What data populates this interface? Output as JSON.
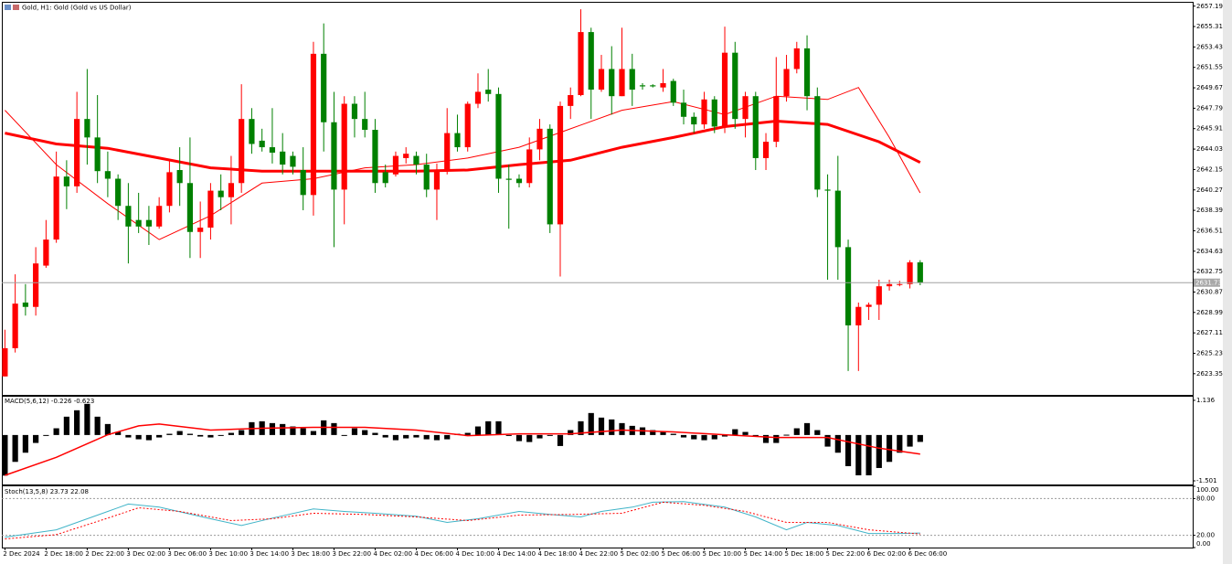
{
  "chart_data": [
    {
      "type": "candlestick",
      "title": "Gold, H1:  Gold (Gold vs US Dollar)",
      "up_color": "#ff0000",
      "down_color": "#008000",
      "xlim": [
        -0.3,
        115.5
      ],
      "ylim": [
        2621.4,
        2657.5
      ],
      "yticks": [
        2657.19,
        2655.31,
        2653.43,
        2651.55,
        2649.67,
        2647.79,
        2645.91,
        2644.03,
        2642.15,
        2640.27,
        2638.39,
        2636.51,
        2634.63,
        2632.75,
        2630.87,
        2628.99,
        2627.11,
        2625.23,
        2623.35
      ],
      "xticks": [
        {
          "value": 0,
          "label": "2 Dec 2024"
        },
        {
          "value": 4,
          "label": "2 Dec 18:00"
        },
        {
          "value": 8,
          "label": "2 Dec 22:00"
        },
        {
          "value": 12,
          "label": "3 Dec 02:00"
        },
        {
          "value": 16,
          "label": "3 Dec 06:00"
        },
        {
          "value": 20,
          "label": "3 Dec 10:00"
        },
        {
          "value": 24,
          "label": "3 Dec 14:00"
        },
        {
          "value": 28,
          "label": "3 Dec 18:00"
        },
        {
          "value": 32,
          "label": "3 Dec 22:00"
        },
        {
          "value": 36,
          "label": "4 Dec 02:00"
        },
        {
          "value": 40,
          "label": "4 Dec 06:00"
        },
        {
          "value": 44,
          "label": "4 Dec 10:00"
        },
        {
          "value": 48,
          "label": "4 Dec 14:00"
        },
        {
          "value": 52,
          "label": "4 Dec 18:00"
        },
        {
          "value": 56,
          "label": "4 Dec 22:00"
        },
        {
          "value": 60,
          "label": "5 Dec 02:00"
        },
        {
          "value": 64,
          "label": "5 Dec 06:00"
        },
        {
          "value": 68,
          "label": "5 Dec 10:00"
        },
        {
          "value": 72,
          "label": "5 Dec 14:00"
        },
        {
          "value": 76,
          "label": "5 Dec 18:00"
        },
        {
          "value": 80,
          "label": "5 Dec 22:00"
        },
        {
          "value": 84,
          "label": "6 Dec 02:00"
        },
        {
          "value": 88,
          "label": "6 Dec 06:00"
        }
      ],
      "ohlc": [
        [
          2623.1,
          2627.4,
          2623.1,
          2625.7
        ],
        [
          2625.7,
          2632.5,
          2625.3,
          2629.8
        ],
        [
          2629.9,
          2631.6,
          2628.7,
          2629.5
        ],
        [
          2629.5,
          2635.0,
          2628.7,
          2633.5
        ],
        [
          2633.3,
          2637.5,
          2633.1,
          2635.7
        ],
        [
          2635.7,
          2643.8,
          2635.4,
          2641.5
        ],
        [
          2641.5,
          2643.0,
          2638.5,
          2640.6
        ],
        [
          2640.6,
          2649.3,
          2640.0,
          2646.8
        ],
        [
          2646.8,
          2651.4,
          2642.6,
          2645.1
        ],
        [
          2645.1,
          2649.0,
          2640.9,
          2642.0
        ],
        [
          2642.0,
          2643.8,
          2639.6,
          2641.3
        ],
        [
          2641.3,
          2641.7,
          2637.5,
          2638.8
        ],
        [
          2638.8,
          2640.9,
          2633.5,
          2636.9
        ],
        [
          2637.5,
          2640.0,
          2636.3,
          2636.9
        ],
        [
          2637.5,
          2638.8,
          2635.2,
          2636.9
        ],
        [
          2636.9,
          2639.6,
          2636.7,
          2638.8
        ],
        [
          2638.8,
          2643.0,
          2638.2,
          2641.9
        ],
        [
          2642.1,
          2644.2,
          2638.8,
          2640.9
        ],
        [
          2640.9,
          2645.1,
          2634.0,
          2636.4
        ],
        [
          2636.4,
          2639.2,
          2634.0,
          2636.8
        ],
        [
          2636.8,
          2640.9,
          2635.7,
          2640.2
        ],
        [
          2640.2,
          2641.7,
          2638.4,
          2639.6
        ],
        [
          2639.6,
          2643.4,
          2637.1,
          2640.9
        ],
        [
          2640.9,
          2650.0,
          2640.0,
          2646.8
        ],
        [
          2646.8,
          2647.8,
          2643.6,
          2644.5
        ],
        [
          2644.8,
          2645.9,
          2643.8,
          2644.2
        ],
        [
          2644.2,
          2647.8,
          2642.7,
          2643.7
        ],
        [
          2643.8,
          2645.5,
          2641.7,
          2642.6
        ],
        [
          2643.4,
          2643.8,
          2641.7,
          2642.4
        ],
        [
          2642.1,
          2644.2,
          2638.4,
          2639.8
        ],
        [
          2639.8,
          2653.9,
          2637.9,
          2652.8
        ],
        [
          2652.8,
          2655.6,
          2643.8,
          2646.5
        ],
        [
          2646.5,
          2649.3,
          2635.0,
          2640.3
        ],
        [
          2640.3,
          2648.9,
          2637.1,
          2648.2
        ],
        [
          2648.2,
          2648.9,
          2645.1,
          2646.8
        ],
        [
          2646.8,
          2649.3,
          2645.1,
          2645.8
        ],
        [
          2645.8,
          2646.8,
          2640.0,
          2640.9
        ],
        [
          2641.9,
          2642.6,
          2640.5,
          2640.9
        ],
        [
          2641.7,
          2643.8,
          2641.5,
          2643.4
        ],
        [
          2643.2,
          2644.2,
          2642.7,
          2643.6
        ],
        [
          2643.4,
          2643.8,
          2641.7,
          2642.6
        ],
        [
          2642.6,
          2643.6,
          2639.6,
          2640.3
        ],
        [
          2640.3,
          2642.7,
          2637.5,
          2642.0
        ],
        [
          2642.0,
          2647.8,
          2641.7,
          2645.5
        ],
        [
          2645.5,
          2647.2,
          2643.8,
          2644.2
        ],
        [
          2644.2,
          2648.4,
          2643.8,
          2648.2
        ],
        [
          2648.2,
          2651.0,
          2647.8,
          2649.3
        ],
        [
          2649.5,
          2651.4,
          2648.4,
          2649.1
        ],
        [
          2649.1,
          2649.7,
          2640.0,
          2641.3
        ],
        [
          2641.3,
          2642.6,
          2636.7,
          2641.2
        ],
        [
          2641.3,
          2641.7,
          2640.5,
          2640.9
        ],
        [
          2640.9,
          2645.1,
          2640.5,
          2644.0
        ],
        [
          2644.0,
          2646.8,
          2643.0,
          2645.9
        ],
        [
          2645.9,
          2646.3,
          2636.3,
          2637.1
        ],
        [
          2637.1,
          2648.4,
          2632.3,
          2648.0
        ],
        [
          2648.0,
          2649.7,
          2646.8,
          2649.0
        ],
        [
          2649.0,
          2656.9,
          2648.9,
          2654.8
        ],
        [
          2654.8,
          2655.2,
          2646.8,
          2649.5
        ],
        [
          2649.5,
          2652.7,
          2649.3,
          2651.4
        ],
        [
          2651.4,
          2653.5,
          2647.2,
          2648.9
        ],
        [
          2648.9,
          2655.2,
          2648.9,
          2651.4
        ],
        [
          2651.4,
          2652.8,
          2648.0,
          2649.5
        ],
        [
          2649.9,
          2650.1,
          2649.5,
          2649.8
        ],
        [
          2649.9,
          2650.0,
          2649.7,
          2649.8
        ],
        [
          2649.7,
          2651.4,
          2649.3,
          2650.1
        ],
        [
          2650.3,
          2650.5,
          2648.0,
          2648.3
        ],
        [
          2648.3,
          2649.5,
          2646.3,
          2647.0
        ],
        [
          2647.0,
          2647.4,
          2645.5,
          2646.3
        ],
        [
          2646.3,
          2649.3,
          2645.9,
          2648.6
        ],
        [
          2648.6,
          2648.9,
          2645.5,
          2646.1
        ],
        [
          2646.1,
          2655.3,
          2645.5,
          2652.9
        ],
        [
          2652.9,
          2653.9,
          2645.9,
          2646.8
        ],
        [
          2646.8,
          2649.3,
          2645.1,
          2648.9
        ],
        [
          2648.9,
          2649.3,
          2642.1,
          2643.2
        ],
        [
          2643.2,
          2645.5,
          2642.1,
          2644.7
        ],
        [
          2644.7,
          2652.5,
          2644.2,
          2648.9
        ],
        [
          2648.9,
          2652.7,
          2648.4,
          2651.4
        ],
        [
          2651.4,
          2653.9,
          2651.0,
          2653.3
        ],
        [
          2653.3,
          2654.5,
          2647.6,
          2648.9
        ],
        [
          2648.9,
          2649.7,
          2639.6,
          2640.3
        ],
        [
          2640.3,
          2641.7,
          2632.0,
          2640.2
        ],
        [
          2640.2,
          2643.4,
          2632.0,
          2635.0
        ],
        [
          2635.0,
          2635.7,
          2623.6,
          2627.8
        ],
        [
          2627.8,
          2629.9,
          2623.6,
          2629.5
        ],
        [
          2629.5,
          2629.9,
          2628.3,
          2629.7
        ],
        [
          2629.7,
          2632.0,
          2628.3,
          2631.4
        ],
        [
          2631.4,
          2632.0,
          2631.0,
          2631.6
        ],
        [
          2631.6,
          2631.9,
          2631.4,
          2631.6
        ],
        [
          2631.6,
          2633.8,
          2631.2,
          2633.6
        ],
        [
          2633.6,
          2633.8,
          2631.5,
          2631.73
        ]
      ],
      "overlays": [
        {
          "color": "#ff0000",
          "thick": true,
          "x": [
            0,
            5,
            10,
            15,
            20,
            25,
            30,
            35,
            40,
            45,
            50,
            55,
            60,
            65,
            70,
            75,
            80,
            85,
            89
          ],
          "values": [
            2645.5,
            2644.5,
            2644.1,
            2643.2,
            2642.3,
            2642.0,
            2642.0,
            2642.0,
            2642.0,
            2642.1,
            2642.6,
            2643.0,
            2644.2,
            2645.1,
            2646.1,
            2646.6,
            2646.3,
            2644.7,
            2642.8
          ]
        },
        {
          "color": "#ff0000",
          "thick": false,
          "x": [
            0,
            5,
            10,
            15,
            20,
            25,
            30,
            35,
            40,
            45,
            50,
            55,
            60,
            65,
            70,
            75,
            80,
            83,
            86,
            89
          ],
          "values": [
            2647.6,
            2642.6,
            2639.0,
            2635.7,
            2637.9,
            2640.9,
            2641.3,
            2642.3,
            2642.6,
            2643.2,
            2644.2,
            2645.9,
            2647.6,
            2648.4,
            2647.2,
            2648.9,
            2648.6,
            2649.7,
            2645.1,
            2640.0
          ]
        }
      ]
    },
    {
      "type": "macd",
      "label": "MACD(5,6,12) -0.226 -0.623",
      "ylim": [
        -1.62,
        1.254
      ],
      "yticks": [
        1.136,
        -1.501
      ],
      "histogram": {
        "color": "#000000",
        "values": [
          -1.33,
          -0.88,
          -0.58,
          -0.26,
          -0.02,
          0.22,
          0.6,
          0.81,
          1.02,
          0.6,
          0.36,
          0.1,
          -0.08,
          -0.14,
          -0.17,
          -0.08,
          0.04,
          0.13,
          0.04,
          -0.05,
          -0.08,
          -0.02,
          0.07,
          0.16,
          0.42,
          0.45,
          0.39,
          0.36,
          0.28,
          0.22,
          0.13,
          0.48,
          0.39,
          -0.02,
          0.22,
          0.16,
          0.07,
          -0.08,
          -0.17,
          -0.11,
          -0.08,
          -0.14,
          -0.17,
          -0.14,
          0.04,
          0.07,
          0.28,
          0.45,
          0.45,
          -0.02,
          -0.2,
          -0.23,
          -0.11,
          -0.02,
          -0.36,
          0.16,
          0.45,
          0.72,
          0.57,
          0.51,
          0.39,
          0.3,
          0.25,
          0.16,
          0.1,
          0.04,
          -0.08,
          -0.14,
          -0.17,
          -0.14,
          -0.05,
          0.19,
          0.1,
          -0.05,
          -0.26,
          -0.26,
          0.01,
          0.22,
          0.39,
          0.16,
          -0.38,
          -0.58,
          -1.02,
          -1.32,
          -1.32,
          -1.08,
          -0.88,
          -0.58,
          -0.38,
          -0.226
        ]
      },
      "signal": {
        "color": "#ff0000",
        "x": [
          0,
          5,
          10,
          13,
          15,
          20,
          25,
          30,
          35,
          40,
          45,
          50,
          55,
          60,
          65,
          70,
          75,
          80,
          85,
          89
        ],
        "values": [
          -1.32,
          -0.73,
          0.01,
          0.3,
          0.36,
          0.16,
          0.22,
          0.25,
          0.25,
          0.16,
          -0.02,
          0.04,
          0.04,
          0.16,
          0.1,
          0.01,
          -0.08,
          -0.08,
          -0.43,
          -0.623
        ]
      }
    },
    {
      "type": "stochastic",
      "label": "Stoch(13,5,8) 23.73 22.08",
      "ylim": [
        0,
        100
      ],
      "yticks": [
        {
          "value": 100,
          "label": "100.00"
        },
        {
          "value": 80,
          "label": "80.00"
        },
        {
          "value": 20,
          "label": "20.00"
        },
        {
          "value": 0,
          "label": "0.00"
        }
      ],
      "main": {
        "color": "#40b4c8",
        "x": [
          0,
          5,
          10,
          12,
          15,
          20,
          23,
          26,
          30,
          33,
          36,
          40,
          43,
          46,
          50,
          53,
          56,
          58,
          61,
          63,
          66,
          70,
          73,
          76,
          78,
          81,
          84,
          87,
          89
        ],
        "values": [
          17,
          29,
          59,
          71,
          66,
          47,
          36,
          48,
          63,
          59,
          56,
          51,
          41,
          47,
          59,
          54,
          50,
          59,
          66,
          74,
          75,
          66,
          50,
          29,
          41,
          36,
          23,
          23,
          23.73
        ]
      },
      "signal": {
        "color": "#ff0000",
        "x": [
          0,
          5,
          10,
          13,
          17,
          22,
          26,
          30,
          35,
          40,
          45,
          50,
          55,
          60,
          64,
          68,
          72,
          76,
          80,
          84,
          89
        ],
        "values": [
          14,
          21,
          48,
          65,
          59,
          44,
          47,
          56,
          54,
          50,
          44,
          53,
          54,
          56,
          74,
          69,
          59,
          41,
          41,
          29,
          22.08
        ]
      }
    }
  ]
}
